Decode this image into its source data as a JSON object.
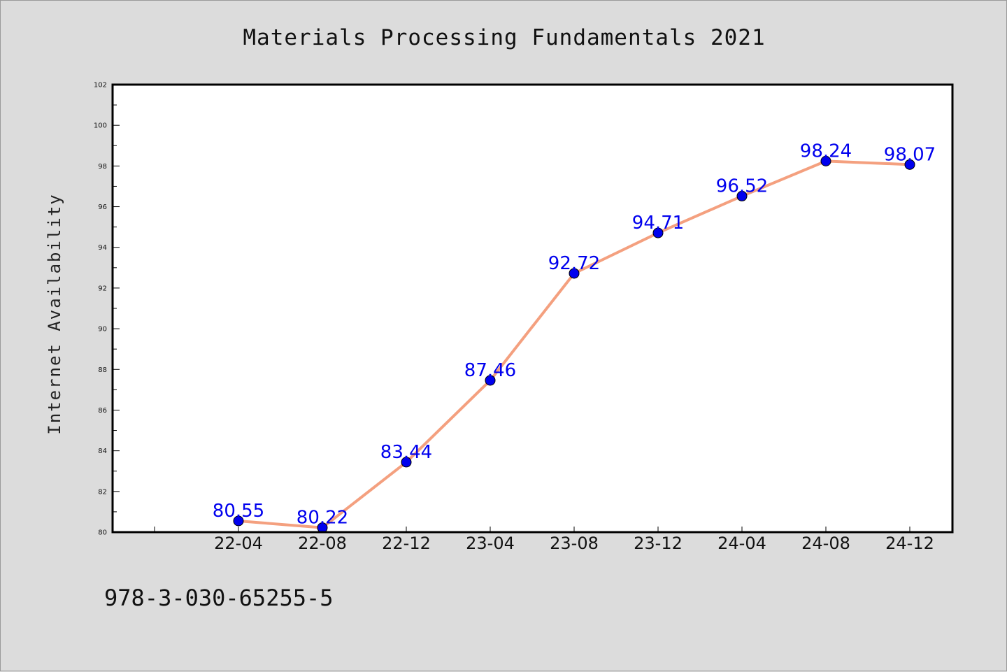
{
  "chart_data": {
    "type": "line",
    "title": "Materials Processing Fundamentals 2021",
    "xlabel": "",
    "ylabel": "Internet Availability",
    "categories": [
      "22-04",
      "22-08",
      "22-12",
      "23-04",
      "23-08",
      "23-12",
      "24-04",
      "24-08",
      "24-12"
    ],
    "series": [
      {
        "values": [
          80.55,
          80.22,
          83.44,
          87.46,
          92.72,
          94.71,
          96.52,
          98.24,
          98.07
        ],
        "labels": [
          "80.55",
          "80.22",
          "83.44",
          "87.46",
          "92.72",
          "94.71",
          "96.52",
          "98.24",
          "98.07"
        ],
        "line_color": "#f4a07f",
        "marker_color": "#0000ee"
      }
    ],
    "ylim": [
      80,
      102
    ],
    "yticks": [
      "80",
      "82",
      "84",
      "86",
      "88",
      "90",
      "92",
      "94",
      "96",
      "98",
      "100",
      "102"
    ],
    "grid": false,
    "legend": "none"
  },
  "footer": {
    "isbn": "978-3-030-65255-5"
  }
}
